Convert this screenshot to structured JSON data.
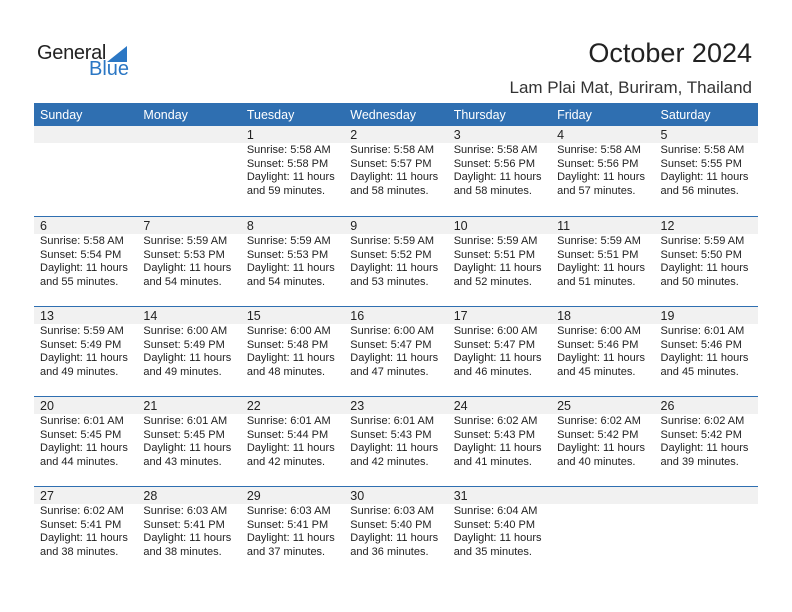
{
  "logo": {
    "text1": "General",
    "text2": "Blue"
  },
  "title": "October 2024",
  "location": "Lam Plai Mat, Buriram, Thailand",
  "colors": {
    "header": "#2f6fb1",
    "band": "#f1f1f1",
    "brand": "#2b77c4"
  },
  "weekdays": [
    "Sunday",
    "Monday",
    "Tuesday",
    "Wednesday",
    "Thursday",
    "Friday",
    "Saturday"
  ],
  "weeks": [
    [
      null,
      null,
      {
        "day": "1",
        "sunrise": "Sunrise: 5:58 AM",
        "sunset": "Sunset: 5:58 PM",
        "daylight": "Daylight: 11 hours",
        "minutes": "and 59 minutes."
      },
      {
        "day": "2",
        "sunrise": "Sunrise: 5:58 AM",
        "sunset": "Sunset: 5:57 PM",
        "daylight": "Daylight: 11 hours",
        "minutes": "and 58 minutes."
      },
      {
        "day": "3",
        "sunrise": "Sunrise: 5:58 AM",
        "sunset": "Sunset: 5:56 PM",
        "daylight": "Daylight: 11 hours",
        "minutes": "and 58 minutes."
      },
      {
        "day": "4",
        "sunrise": "Sunrise: 5:58 AM",
        "sunset": "Sunset: 5:56 PM",
        "daylight": "Daylight: 11 hours",
        "minutes": "and 57 minutes."
      },
      {
        "day": "5",
        "sunrise": "Sunrise: 5:58 AM",
        "sunset": "Sunset: 5:55 PM",
        "daylight": "Daylight: 11 hours",
        "minutes": "and 56 minutes."
      }
    ],
    [
      {
        "day": "6",
        "sunrise": "Sunrise: 5:58 AM",
        "sunset": "Sunset: 5:54 PM",
        "daylight": "Daylight: 11 hours",
        "minutes": "and 55 minutes."
      },
      {
        "day": "7",
        "sunrise": "Sunrise: 5:59 AM",
        "sunset": "Sunset: 5:53 PM",
        "daylight": "Daylight: 11 hours",
        "minutes": "and 54 minutes."
      },
      {
        "day": "8",
        "sunrise": "Sunrise: 5:59 AM",
        "sunset": "Sunset: 5:53 PM",
        "daylight": "Daylight: 11 hours",
        "minutes": "and 54 minutes."
      },
      {
        "day": "9",
        "sunrise": "Sunrise: 5:59 AM",
        "sunset": "Sunset: 5:52 PM",
        "daylight": "Daylight: 11 hours",
        "minutes": "and 53 minutes."
      },
      {
        "day": "10",
        "sunrise": "Sunrise: 5:59 AM",
        "sunset": "Sunset: 5:51 PM",
        "daylight": "Daylight: 11 hours",
        "minutes": "and 52 minutes."
      },
      {
        "day": "11",
        "sunrise": "Sunrise: 5:59 AM",
        "sunset": "Sunset: 5:51 PM",
        "daylight": "Daylight: 11 hours",
        "minutes": "and 51 minutes."
      },
      {
        "day": "12",
        "sunrise": "Sunrise: 5:59 AM",
        "sunset": "Sunset: 5:50 PM",
        "daylight": "Daylight: 11 hours",
        "minutes": "and 50 minutes."
      }
    ],
    [
      {
        "day": "13",
        "sunrise": "Sunrise: 5:59 AM",
        "sunset": "Sunset: 5:49 PM",
        "daylight": "Daylight: 11 hours",
        "minutes": "and 49 minutes."
      },
      {
        "day": "14",
        "sunrise": "Sunrise: 6:00 AM",
        "sunset": "Sunset: 5:49 PM",
        "daylight": "Daylight: 11 hours",
        "minutes": "and 49 minutes."
      },
      {
        "day": "15",
        "sunrise": "Sunrise: 6:00 AM",
        "sunset": "Sunset: 5:48 PM",
        "daylight": "Daylight: 11 hours",
        "minutes": "and 48 minutes."
      },
      {
        "day": "16",
        "sunrise": "Sunrise: 6:00 AM",
        "sunset": "Sunset: 5:47 PM",
        "daylight": "Daylight: 11 hours",
        "minutes": "and 47 minutes."
      },
      {
        "day": "17",
        "sunrise": "Sunrise: 6:00 AM",
        "sunset": "Sunset: 5:47 PM",
        "daylight": "Daylight: 11 hours",
        "minutes": "and 46 minutes."
      },
      {
        "day": "18",
        "sunrise": "Sunrise: 6:00 AM",
        "sunset": "Sunset: 5:46 PM",
        "daylight": "Daylight: 11 hours",
        "minutes": "and 45 minutes."
      },
      {
        "day": "19",
        "sunrise": "Sunrise: 6:01 AM",
        "sunset": "Sunset: 5:46 PM",
        "daylight": "Daylight: 11 hours",
        "minutes": "and 45 minutes."
      }
    ],
    [
      {
        "day": "20",
        "sunrise": "Sunrise: 6:01 AM",
        "sunset": "Sunset: 5:45 PM",
        "daylight": "Daylight: 11 hours",
        "minutes": "and 44 minutes."
      },
      {
        "day": "21",
        "sunrise": "Sunrise: 6:01 AM",
        "sunset": "Sunset: 5:45 PM",
        "daylight": "Daylight: 11 hours",
        "minutes": "and 43 minutes."
      },
      {
        "day": "22",
        "sunrise": "Sunrise: 6:01 AM",
        "sunset": "Sunset: 5:44 PM",
        "daylight": "Daylight: 11 hours",
        "minutes": "and 42 minutes."
      },
      {
        "day": "23",
        "sunrise": "Sunrise: 6:01 AM",
        "sunset": "Sunset: 5:43 PM",
        "daylight": "Daylight: 11 hours",
        "minutes": "and 42 minutes."
      },
      {
        "day": "24",
        "sunrise": "Sunrise: 6:02 AM",
        "sunset": "Sunset: 5:43 PM",
        "daylight": "Daylight: 11 hours",
        "minutes": "and 41 minutes."
      },
      {
        "day": "25",
        "sunrise": "Sunrise: 6:02 AM",
        "sunset": "Sunset: 5:42 PM",
        "daylight": "Daylight: 11 hours",
        "minutes": "and 40 minutes."
      },
      {
        "day": "26",
        "sunrise": "Sunrise: 6:02 AM",
        "sunset": "Sunset: 5:42 PM",
        "daylight": "Daylight: 11 hours",
        "minutes": "and 39 minutes."
      }
    ],
    [
      {
        "day": "27",
        "sunrise": "Sunrise: 6:02 AM",
        "sunset": "Sunset: 5:41 PM",
        "daylight": "Daylight: 11 hours",
        "minutes": "and 38 minutes."
      },
      {
        "day": "28",
        "sunrise": "Sunrise: 6:03 AM",
        "sunset": "Sunset: 5:41 PM",
        "daylight": "Daylight: 11 hours",
        "minutes": "and 38 minutes."
      },
      {
        "day": "29",
        "sunrise": "Sunrise: 6:03 AM",
        "sunset": "Sunset: 5:41 PM",
        "daylight": "Daylight: 11 hours",
        "minutes": "and 37 minutes."
      },
      {
        "day": "30",
        "sunrise": "Sunrise: 6:03 AM",
        "sunset": "Sunset: 5:40 PM",
        "daylight": "Daylight: 11 hours",
        "minutes": "and 36 minutes."
      },
      {
        "day": "31",
        "sunrise": "Sunrise: 6:04 AM",
        "sunset": "Sunset: 5:40 PM",
        "daylight": "Daylight: 11 hours",
        "minutes": "and 35 minutes."
      },
      null,
      null
    ]
  ]
}
